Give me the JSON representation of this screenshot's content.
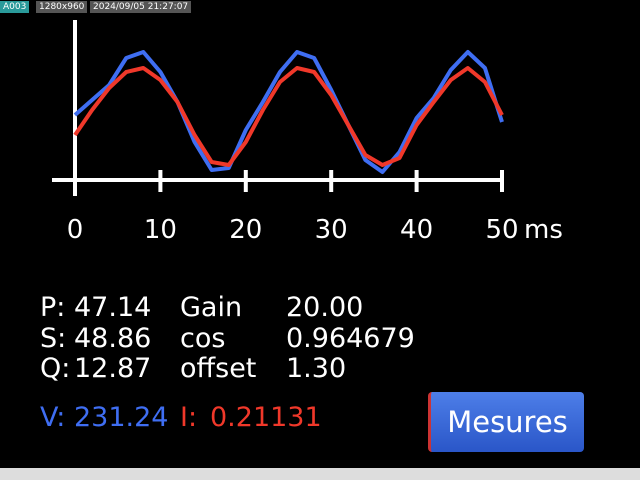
{
  "header": {
    "id": "A003",
    "resolution": "1280x960",
    "timestamp": "2024/09/05 21:27:07"
  },
  "chart_data": {
    "type": "line",
    "x_unit": "ms",
    "x": [
      0,
      2,
      4,
      6,
      8,
      10,
      12,
      14,
      16,
      18,
      20,
      22,
      24,
      26,
      28,
      30,
      32,
      34,
      36,
      38,
      40,
      42,
      44,
      46,
      48,
      50
    ],
    "series": [
      {
        "color": "#3f6ef2",
        "values": [
          65,
          80,
          95,
          122,
          128,
          108,
          78,
          38,
          10,
          12,
          50,
          78,
          108,
          128,
          122,
          90,
          55,
          20,
          8,
          28,
          62,
          82,
          110,
          128,
          112,
          58
        ]
      },
      {
        "color": "#f0382a",
        "values": [
          45,
          70,
          92,
          108,
          112,
          100,
          78,
          45,
          18,
          15,
          38,
          70,
          98,
          112,
          108,
          85,
          55,
          25,
          15,
          22,
          55,
          78,
          100,
          112,
          98,
          65
        ]
      }
    ],
    "xlim": [
      0,
      50
    ],
    "xticks": [
      0,
      10,
      20,
      30,
      40,
      50
    ],
    "ylim": [
      0,
      160
    ]
  },
  "readings": {
    "rows": [
      [
        "P:",
        "47.14",
        "Gain",
        "20.00"
      ],
      [
        "S:",
        "48.86",
        "cos",
        "0.964679"
      ],
      [
        "Q:",
        "12.87",
        "offset",
        "1.30"
      ]
    ],
    "voltage_label": "V:",
    "voltage": "231.24",
    "current_label": "I:",
    "current": "0.21131"
  },
  "button": {
    "label": "Mesures"
  }
}
